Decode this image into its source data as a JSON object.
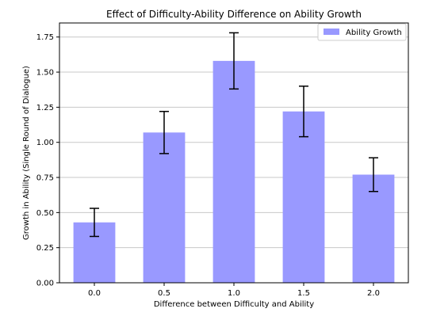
{
  "chart_data": {
    "type": "bar",
    "title": "Effect of Difficulty-Ability Difference on Ability Growth",
    "xlabel": "Difference between Difficulty and Ability",
    "ylabel": "Growth in Ability (Single Round of Dialogue)",
    "categories": [
      "0.0",
      "0.5",
      "1.0",
      "1.5",
      "2.0"
    ],
    "series": [
      {
        "name": "Ability Growth",
        "values": [
          0.43,
          1.07,
          1.58,
          1.22,
          0.77
        ],
        "errors": [
          0.1,
          0.15,
          0.2,
          0.18,
          0.12
        ],
        "color": "#9999ff"
      }
    ],
    "ylim": [
      0,
      1.85
    ],
    "yticks": [
      0.0,
      0.25,
      0.5,
      0.75,
      1.0,
      1.25,
      1.5,
      1.75
    ],
    "ytick_labels": [
      "0.00",
      "0.25",
      "0.50",
      "0.75",
      "1.00",
      "1.25",
      "1.50",
      "1.75"
    ],
    "grid": "horizontal",
    "legend_position": "top-right",
    "colors": {
      "bar": "#9999ff",
      "error_bar": "#000000",
      "grid": "#c8c8c8",
      "axis": "#000000"
    }
  }
}
